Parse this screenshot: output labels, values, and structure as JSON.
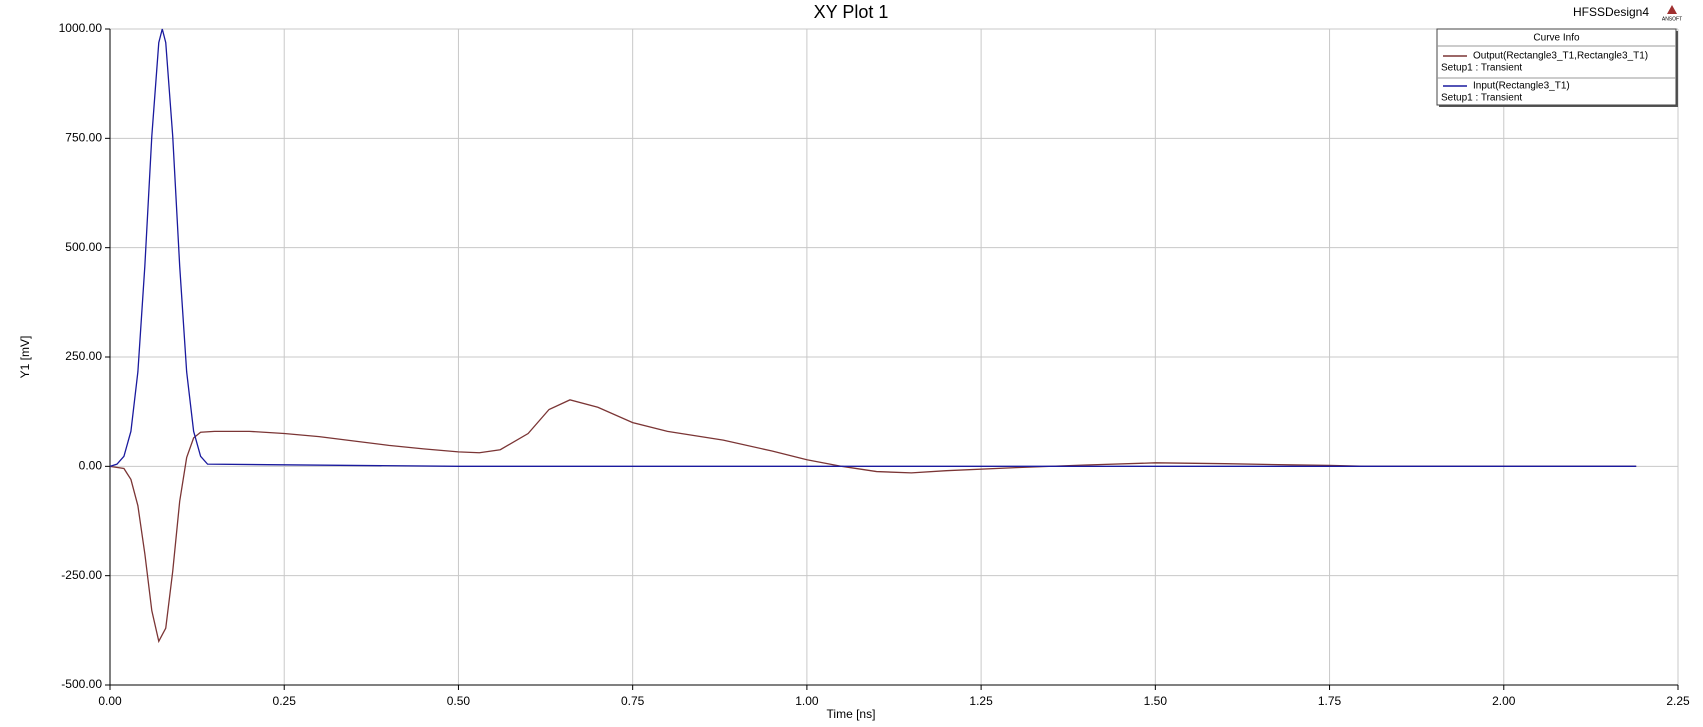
{
  "chart_data": {
    "type": "line",
    "title": "XY Plot 1",
    "design_name": "HFSSDesign4",
    "logo_text": "ANSOFT",
    "xlabel": "Time [ns]",
    "ylabel": "Y1 [mV]",
    "xlim": [
      0,
      2.25
    ],
    "ylim": [
      -500,
      1000
    ],
    "xticks": [
      {
        "value": 0,
        "label": "0.00"
      },
      {
        "value": 0.25,
        "label": "0.25"
      },
      {
        "value": 0.5,
        "label": "0.50"
      },
      {
        "value": 0.75,
        "label": "0.75"
      },
      {
        "value": 1,
        "label": "1.00"
      },
      {
        "value": 1.25,
        "label": "1.25"
      },
      {
        "value": 1.5,
        "label": "1.50"
      },
      {
        "value": 1.75,
        "label": "1.75"
      },
      {
        "value": 2,
        "label": "2.00"
      },
      {
        "value": 2.25,
        "label": "2.25"
      }
    ],
    "yticks": [
      {
        "value": -500,
        "label": "-500.00"
      },
      {
        "value": -250,
        "label": "-250.00"
      },
      {
        "value": 0,
        "label": "0.00"
      },
      {
        "value": 250,
        "label": "250.00"
      },
      {
        "value": 500,
        "label": "500.00"
      },
      {
        "value": 750,
        "label": "750.00"
      },
      {
        "value": 1000,
        "label": "1000.00"
      }
    ],
    "grid": true,
    "legend_title": "Curve Info",
    "series": [
      {
        "name": "Output(Rectangle3_T1,Rectangle3_T1)",
        "setup": "Setup1 : Transient",
        "color": "#7b3535",
        "x": [
          0,
          0.02,
          0.03,
          0.04,
          0.05,
          0.06,
          0.07,
          0.08,
          0.09,
          0.1,
          0.11,
          0.12,
          0.13,
          0.15,
          0.2,
          0.25,
          0.3,
          0.35,
          0.4,
          0.45,
          0.5,
          0.53,
          0.56,
          0.6,
          0.63,
          0.66,
          0.7,
          0.75,
          0.8,
          0.88,
          0.95,
          1.0,
          1.05,
          1.1,
          1.15,
          1.2,
          1.3,
          1.4,
          1.5,
          1.6,
          1.75,
          1.8,
          2.19
        ],
        "values": [
          0,
          -5,
          -30,
          -90,
          -200,
          -330,
          -400,
          -370,
          -240,
          -80,
          20,
          65,
          78,
          80,
          80,
          75,
          68,
          58,
          48,
          40,
          33,
          31,
          38,
          75,
          130,
          152,
          135,
          100,
          80,
          60,
          35,
          15,
          0,
          -12,
          -15,
          -10,
          -3,
          3,
          8,
          6,
          2,
          0,
          0
        ]
      },
      {
        "name": "Input(Rectangle3_T1)",
        "setup": "Setup1 : Transient",
        "color": "#1a1a9e",
        "x": [
          0,
          0.01,
          0.02,
          0.03,
          0.04,
          0.05,
          0.06,
          0.07,
          0.075,
          0.08,
          0.09,
          0.1,
          0.11,
          0.12,
          0.13,
          0.14,
          0.5,
          1.0,
          1.5,
          2.19
        ],
        "values": [
          0,
          5,
          23,
          80,
          216,
          458,
          755,
          969,
          1000,
          969,
          755,
          458,
          216,
          80,
          23,
          5,
          0,
          0,
          0,
          0
        ]
      }
    ]
  }
}
